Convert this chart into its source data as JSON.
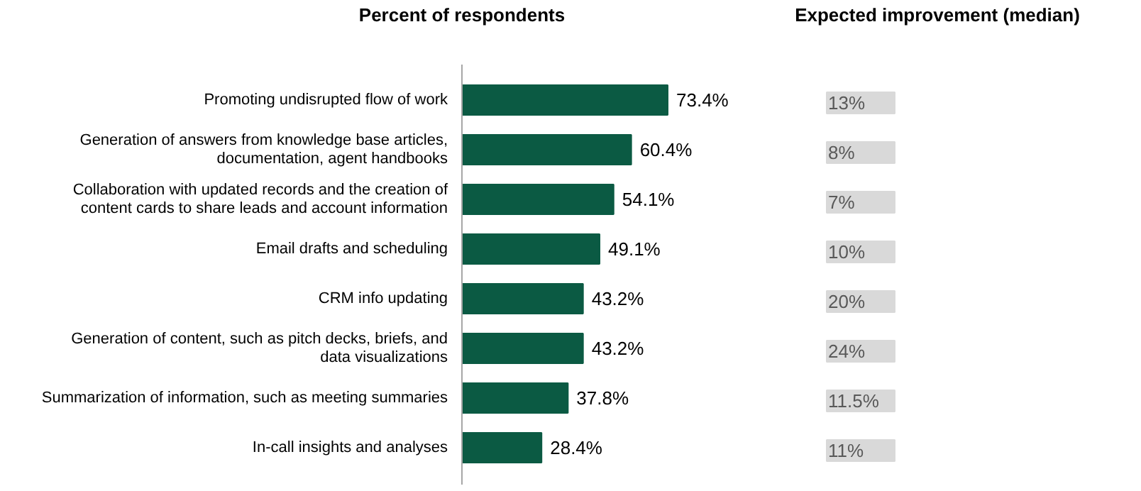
{
  "chart_data": {
    "type": "bar",
    "orientation": "horizontal",
    "title": "Percent of respondents",
    "categories": [
      "Promoting undisrupted flow of work",
      "Generation of answers from knowledge base articles, documentation, agent handbooks",
      "Collaboration with updated records and the creation of content cards to share leads and account information",
      "Email drafts and scheduling",
      "CRM info updating",
      "Generation of content, such as pitch decks, briefs, and data visualizations",
      "Summarization of information, such as meeting summaries",
      "In-call insights and analyses"
    ],
    "values": [
      73.4,
      60.4,
      54.1,
      49.1,
      43.2,
      43.2,
      37.8,
      28.4
    ],
    "value_labels": [
      "73.4%",
      "60.4%",
      "54.1%",
      "49.1%",
      "43.2%",
      "43.2%",
      "37.8%",
      "28.4%"
    ],
    "color": "#0b5a43",
    "annotations": [
      "Expected improvement (median)",
      "13%",
      "8%",
      "7%",
      "10%",
      "20%",
      "24%",
      "11.5%",
      "11%"
    ]
  }
}
